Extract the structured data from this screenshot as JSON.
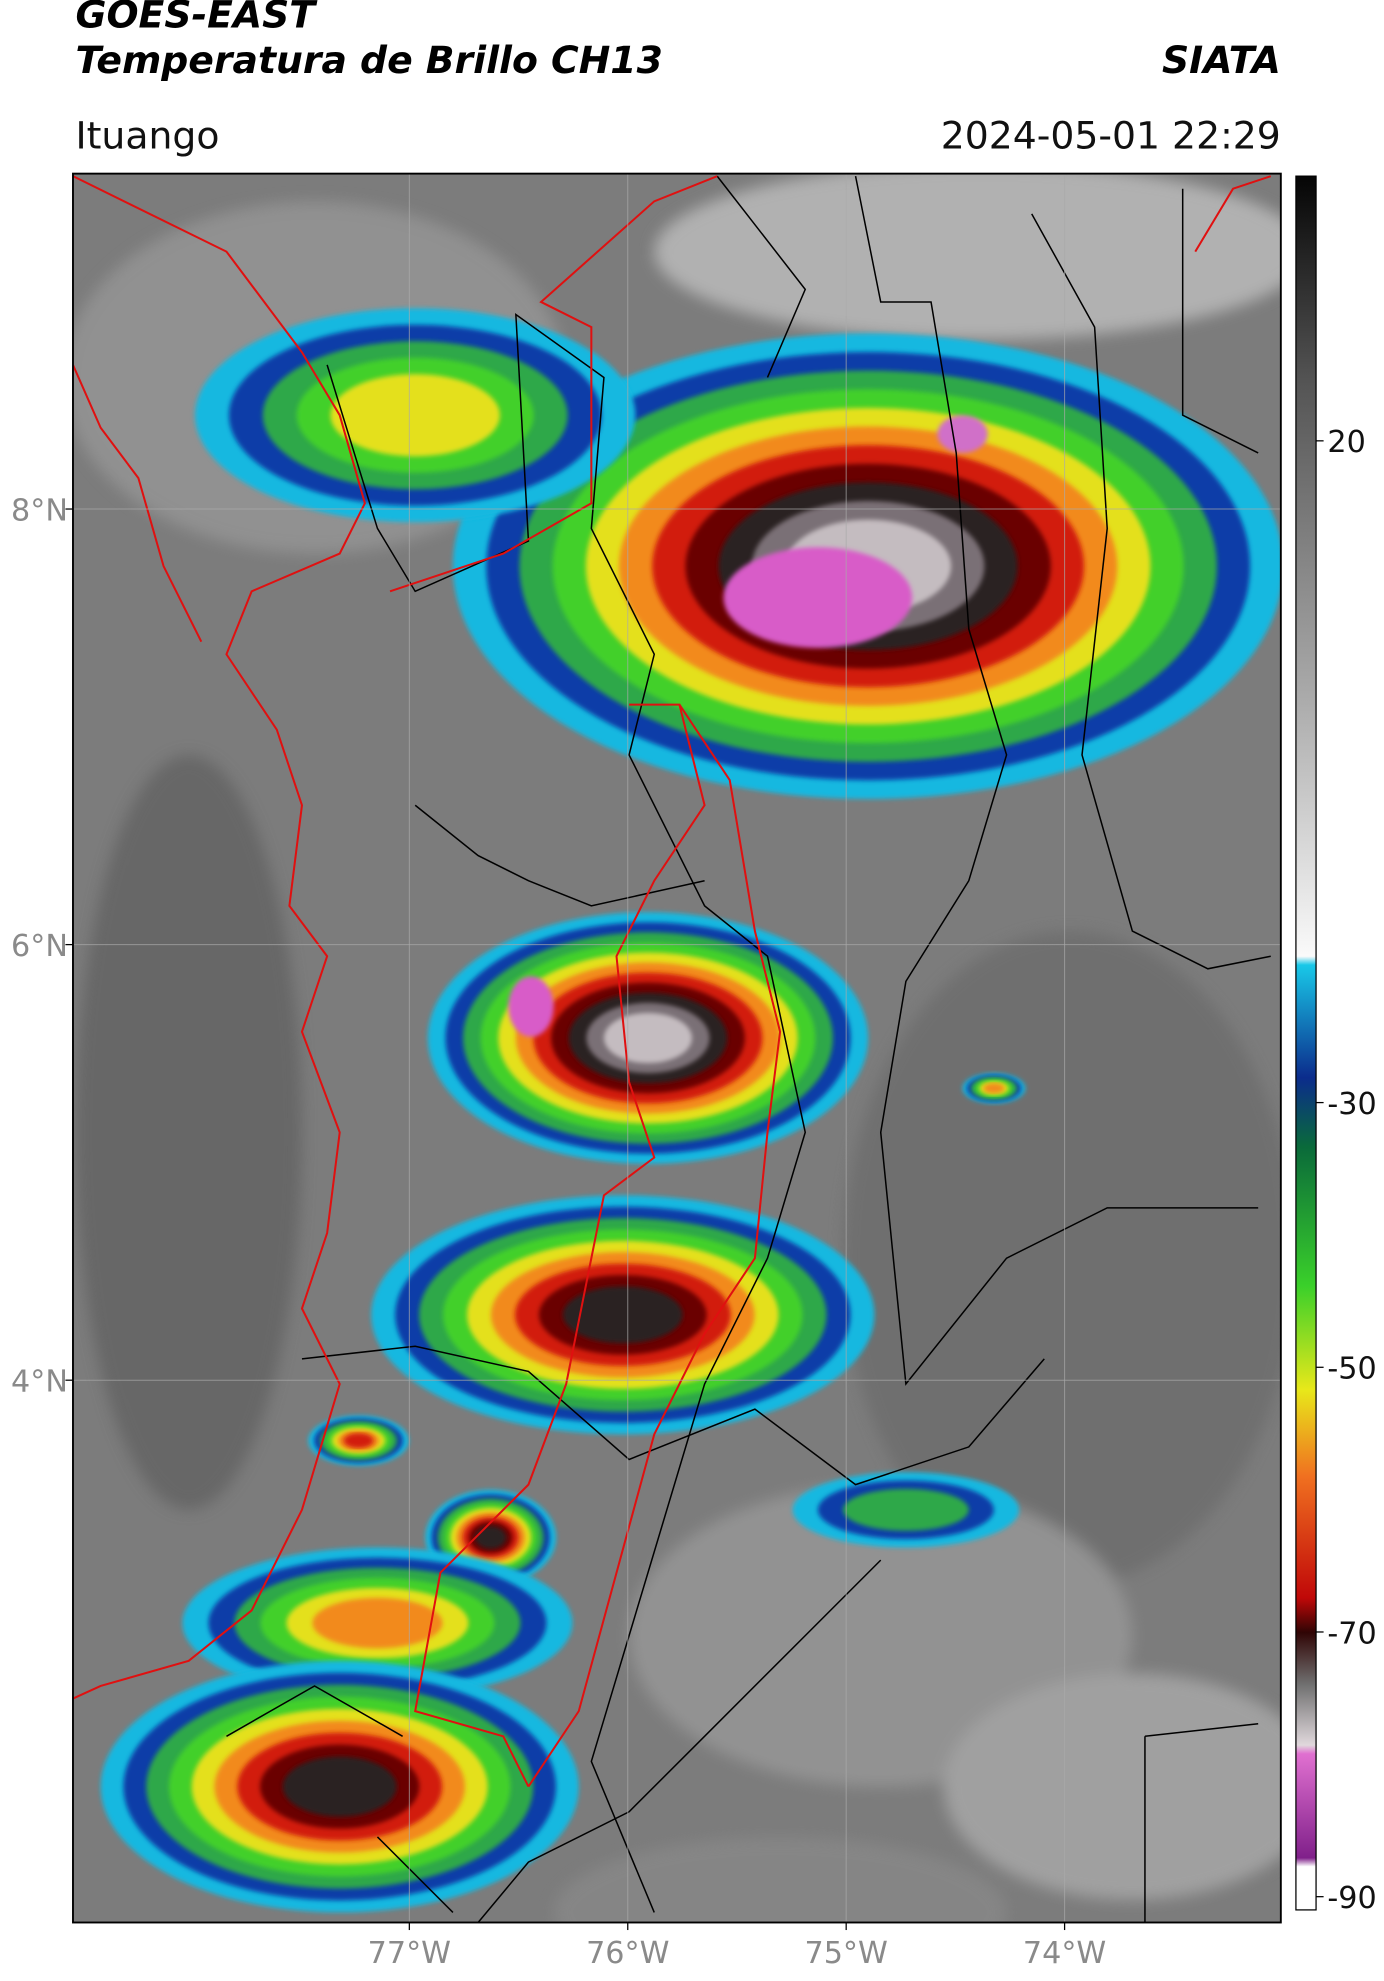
{
  "header": {
    "title": "GOES-EAST",
    "subtitle": "Temperatura de Brillo CH13",
    "source": "SIATA",
    "location": "Ituango",
    "datetime": "2024-05-01 22:29"
  },
  "map": {
    "xlim": [
      -78.54,
      -73.01
    ],
    "ylim": [
      1.51,
      9.54
    ],
    "xticks": [
      {
        "value": -77,
        "label": "77°W"
      },
      {
        "value": -76,
        "label": "76°W"
      },
      {
        "value": -75,
        "label": "75°W"
      },
      {
        "value": -74,
        "label": "74°W"
      }
    ],
    "yticks": [
      {
        "value": 8,
        "label": "8°N"
      },
      {
        "value": 6,
        "label": "6°N"
      },
      {
        "value": 4,
        "label": "4°N"
      }
    ],
    "grid": true
  },
  "colorbar": {
    "clim": [
      -91,
      40
    ],
    "ticks": [
      20,
      -30,
      -50,
      -70,
      -90
    ]
  }
}
